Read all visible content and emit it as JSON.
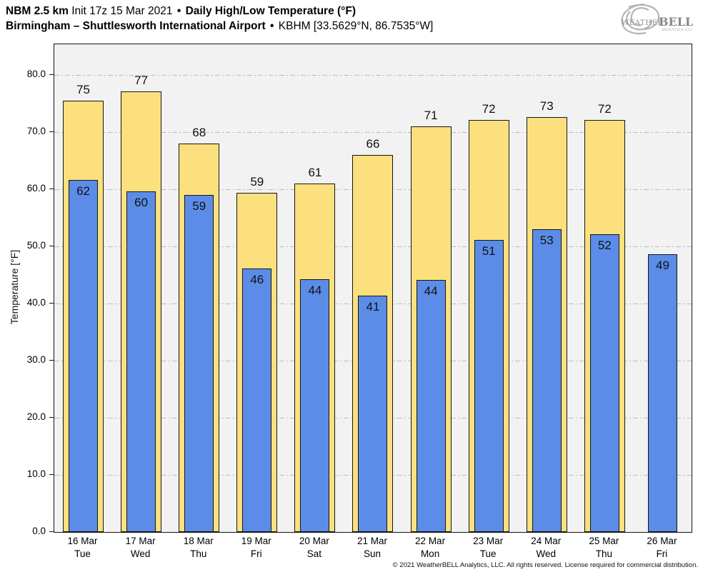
{
  "header": {
    "title_model": "NBM 2.5 km",
    "title_init": "Init 17z 15 Mar 2021",
    "bullet": "•",
    "title_product": "Daily High/Low Temperature (°F)",
    "title_location": "Birmingham – Shuttlesworth International Airport",
    "title_station": "KBHM [33.5629°N, 86.7535°W]",
    "logo": {
      "word_weather": "Weather",
      "word_bell": "BELL",
      "subtext": "Analytics LLC"
    }
  },
  "footer": {
    "copyright": "© 2021 WeatherBELL Analytics, LLC. All rights reserved. License required for commercial distribution."
  },
  "chart_data": {
    "type": "bar",
    "title": "Daily High/Low Temperature (°F)",
    "xlabel": "",
    "ylabel": "Temperature [°F]",
    "ylim": [
      0,
      85.4
    ],
    "yticks": [
      0,
      10,
      20,
      30,
      40,
      50,
      60,
      70,
      80
    ],
    "grid": true,
    "legend_position": "none",
    "categories": [
      "16 Mar",
      "17 Mar",
      "18 Mar",
      "19 Mar",
      "20 Mar",
      "21 Mar",
      "22 Mar",
      "23 Mar",
      "24 Mar",
      "25 Mar",
      "26 Mar"
    ],
    "weekdays": [
      "Tue",
      "Wed",
      "Thu",
      "Fri",
      "Sat",
      "Sun",
      "Mon",
      "Tue",
      "Wed",
      "Thu",
      "Fri"
    ],
    "series": [
      {
        "name": "High",
        "color": "#FCE07E",
        "values": [
          75.5,
          77.2,
          68.0,
          59.4,
          61.0,
          66.0,
          71.0,
          72.1,
          72.7,
          72.2,
          null
        ],
        "labels": [
          "75",
          "77",
          "68",
          "59",
          "61",
          "66",
          "71",
          "72",
          "73",
          "72",
          ""
        ]
      },
      {
        "name": "Low",
        "color": "#5B8DE8",
        "values": [
          61.7,
          59.7,
          59.0,
          46.1,
          44.3,
          41.4,
          44.2,
          51.1,
          53.0,
          52.2,
          48.6
        ],
        "labels": [
          "62",
          "60",
          "59",
          "46",
          "44",
          "41",
          "44",
          "51",
          "53",
          "52",
          "49"
        ]
      }
    ],
    "colors": {
      "plot_background": "#F2F2F2",
      "gridline": "#BDBDBD",
      "bar_border": "#151515",
      "high_bar": "#FCE07E",
      "low_bar": "#5B8DE8"
    }
  }
}
